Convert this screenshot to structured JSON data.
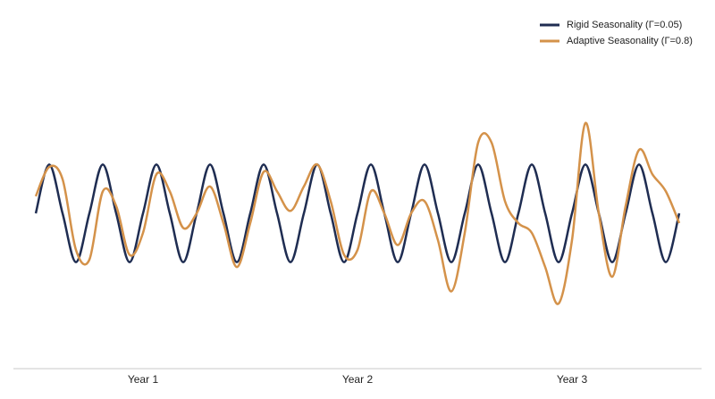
{
  "chart_data": {
    "type": "line",
    "x": [
      0.5,
      0.5625,
      0.625,
      0.6875,
      0.75,
      0.8125,
      0.875,
      0.9375,
      1,
      1.0625,
      1.125,
      1.1875,
      1.25,
      1.3125,
      1.375,
      1.4375,
      1.5,
      1.5625,
      1.625,
      1.6875,
      1.75,
      1.8125,
      1.875,
      1.9375,
      2,
      2.0625,
      2.125,
      2.1875,
      2.25,
      2.3125,
      2.375,
      2.4375,
      2.5,
      2.5625,
      2.625,
      2.6875,
      2.75,
      2.8125,
      2.875,
      2.9375,
      3,
      3.0625,
      3.125,
      3.1875,
      3.25,
      3.3125,
      3.375,
      3.4375,
      3.5
    ],
    "xlim": [
      0.5,
      3.5
    ],
    "xticks": [
      {
        "value": 1,
        "label": "Year 1"
      },
      {
        "value": 2,
        "label": "Year 2"
      },
      {
        "value": 3,
        "label": "Year 3"
      }
    ],
    "ylim": [
      -3,
      3
    ],
    "legend": "upper right",
    "series": [
      {
        "name": "Rigid Seasonality (Γ=0.05)",
        "color": "#1f2d52",
        "values": [
          0,
          1,
          0,
          -1,
          0,
          1,
          0,
          -1,
          0,
          1,
          0,
          -1,
          0,
          1,
          0,
          -1,
          0,
          1,
          0,
          -1,
          0,
          1,
          0,
          -1,
          0,
          1,
          0,
          -1,
          0,
          1,
          0,
          -1,
          0,
          1,
          0,
          -1,
          0,
          1,
          0,
          -1,
          0,
          1,
          0,
          -1,
          0,
          1,
          0,
          -1,
          0
        ]
      },
      {
        "name": "Adaptive Seasonality (Γ=0.8)",
        "color": "#d4924a",
        "values": [
          0.35,
          0.95,
          0.7,
          -0.75,
          -0.95,
          0.45,
          0.15,
          -0.85,
          -0.4,
          0.8,
          0.45,
          -0.3,
          0,
          0.55,
          -0.2,
          -1.1,
          -0.2,
          0.85,
          0.45,
          0.05,
          0.55,
          1,
          0.25,
          -0.85,
          -0.75,
          0.45,
          0,
          -0.65,
          0,
          0.25,
          -0.55,
          -1.6,
          -0.4,
          1.45,
          1.45,
          0.25,
          -0.2,
          -0.4,
          -1.1,
          -1.85,
          -0.55,
          1.85,
          0,
          -1.3,
          0.15,
          1.3,
          0.8,
          0.45,
          -0.2
        ]
      }
    ]
  }
}
